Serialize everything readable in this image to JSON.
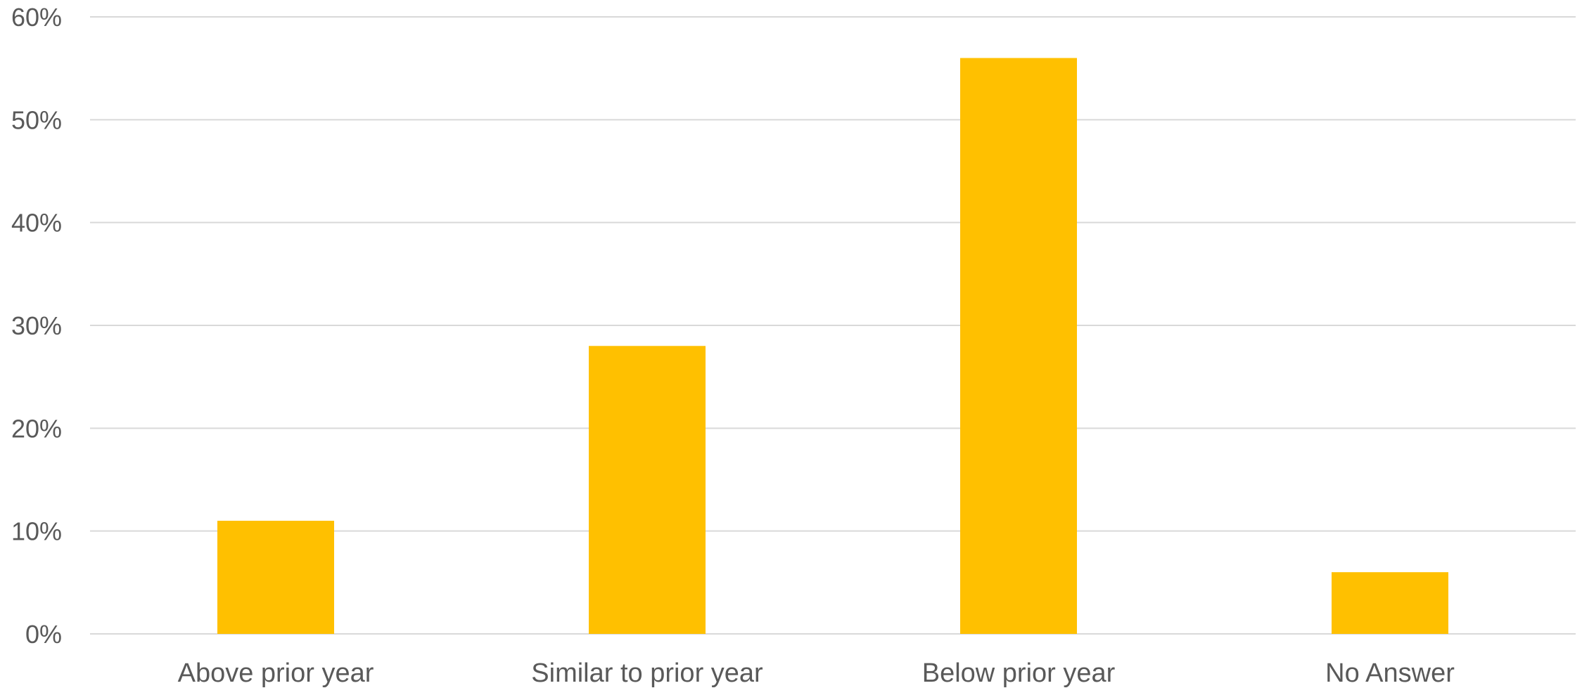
{
  "chart_data": {
    "type": "bar",
    "categories": [
      "Above prior year",
      "Similar to prior year",
      "Below prior year",
      "No Answer"
    ],
    "values": [
      11,
      28,
      56,
      6
    ],
    "ylim": [
      0,
      60
    ],
    "yticks": [
      0,
      10,
      20,
      30,
      40,
      50,
      60
    ],
    "ytick_labels": [
      "0%",
      "10%",
      "20%",
      "30%",
      "40%",
      "50%",
      "60%"
    ],
    "title": "",
    "xlabel": "",
    "ylabel": "",
    "grid": true,
    "legend": "none",
    "colors": {
      "bar": "#FFC000",
      "grid": "#D9D9D9",
      "text": "#595959"
    }
  }
}
